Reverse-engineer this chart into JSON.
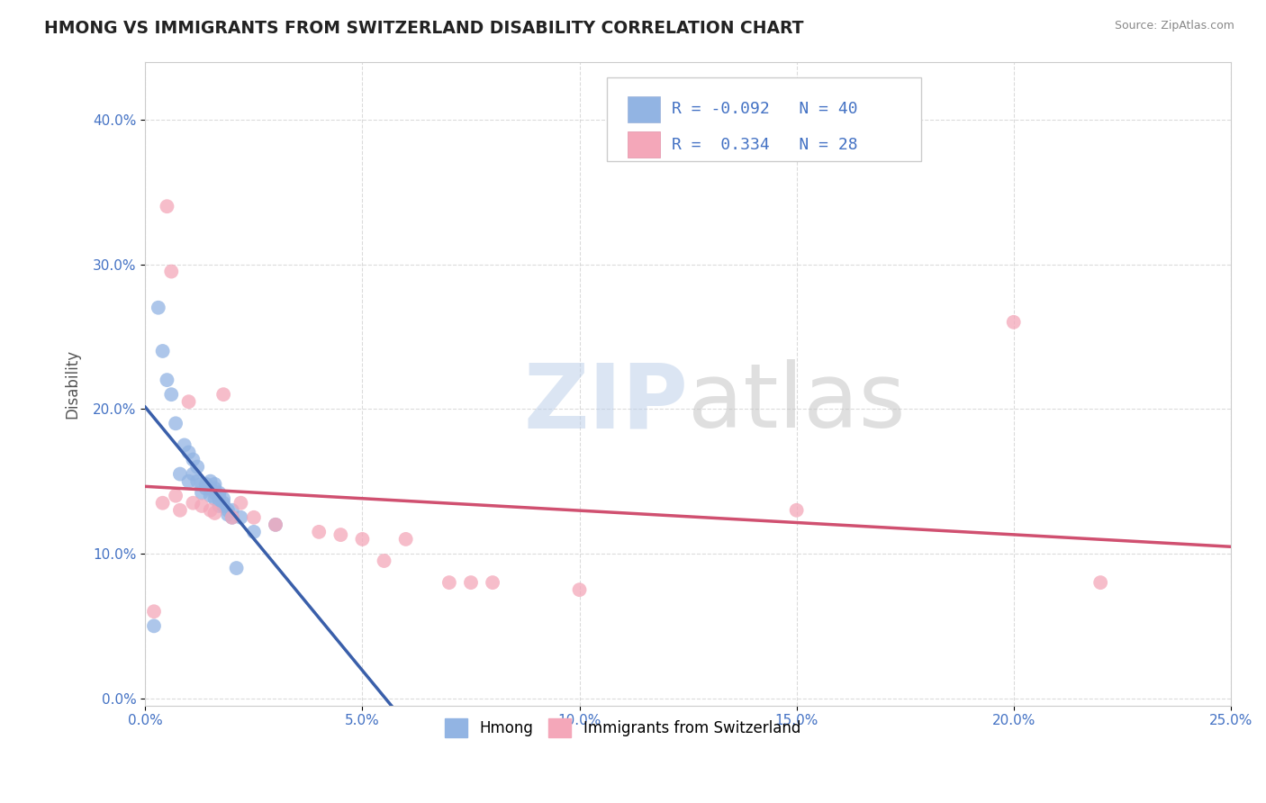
{
  "title": "HMONG VS IMMIGRANTS FROM SWITZERLAND DISABILITY CORRELATION CHART",
  "source": "Source: ZipAtlas.com",
  "xlabel": "",
  "ylabel": "Disability",
  "xlim": [
    0.0,
    0.25
  ],
  "ylim": [
    -0.005,
    0.44
  ],
  "x_ticks": [
    0.0,
    0.05,
    0.1,
    0.15,
    0.2,
    0.25
  ],
  "x_tick_labels": [
    "0.0%",
    "5.0%",
    "10.0%",
    "15.0%",
    "20.0%",
    "25.0%"
  ],
  "y_ticks": [
    0.0,
    0.1,
    0.2,
    0.3,
    0.4
  ],
  "y_tick_labels": [
    "0.0%",
    "10.0%",
    "20.0%",
    "30.0%",
    "40.0%"
  ],
  "hmong_R": -0.092,
  "hmong_N": 40,
  "swiss_R": 0.334,
  "swiss_N": 28,
  "hmong_color": "#92b4e3",
  "hmong_line_color": "#3a5faa",
  "swiss_color": "#f4a7b9",
  "swiss_line_color": "#d05070",
  "watermark_color_zip": "#b8cce8",
  "watermark_color_atlas": "#c0c0c0",
  "legend_text_color": "#4472c4",
  "grid_color": "#cccccc",
  "hmong_x": [
    0.002,
    0.003,
    0.004,
    0.005,
    0.006,
    0.007,
    0.008,
    0.009,
    0.01,
    0.01,
    0.011,
    0.011,
    0.012,
    0.012,
    0.013,
    0.013,
    0.014,
    0.014,
    0.015,
    0.015,
    0.015,
    0.016,
    0.016,
    0.016,
    0.016,
    0.017,
    0.017,
    0.017,
    0.017,
    0.018,
    0.018,
    0.018,
    0.019,
    0.019,
    0.02,
    0.02,
    0.021,
    0.022,
    0.025,
    0.03
  ],
  "hmong_y": [
    0.05,
    0.27,
    0.24,
    0.22,
    0.21,
    0.19,
    0.155,
    0.175,
    0.17,
    0.15,
    0.165,
    0.155,
    0.16,
    0.15,
    0.148,
    0.142,
    0.148,
    0.145,
    0.15,
    0.145,
    0.14,
    0.148,
    0.145,
    0.142,
    0.138,
    0.142,
    0.14,
    0.137,
    0.133,
    0.138,
    0.135,
    0.133,
    0.13,
    0.127,
    0.13,
    0.125,
    0.09,
    0.125,
    0.115,
    0.12
  ],
  "swiss_x": [
    0.002,
    0.004,
    0.005,
    0.006,
    0.007,
    0.008,
    0.01,
    0.011,
    0.013,
    0.015,
    0.016,
    0.018,
    0.02,
    0.022,
    0.025,
    0.03,
    0.04,
    0.045,
    0.05,
    0.055,
    0.06,
    0.07,
    0.075,
    0.08,
    0.1,
    0.15,
    0.2,
    0.22
  ],
  "swiss_y": [
    0.06,
    0.135,
    0.34,
    0.295,
    0.14,
    0.13,
    0.205,
    0.135,
    0.133,
    0.13,
    0.128,
    0.21,
    0.125,
    0.135,
    0.125,
    0.12,
    0.115,
    0.113,
    0.11,
    0.095,
    0.11,
    0.08,
    0.08,
    0.08,
    0.075,
    0.13,
    0.26,
    0.08
  ],
  "dashed_color": "#a0b8d8"
}
